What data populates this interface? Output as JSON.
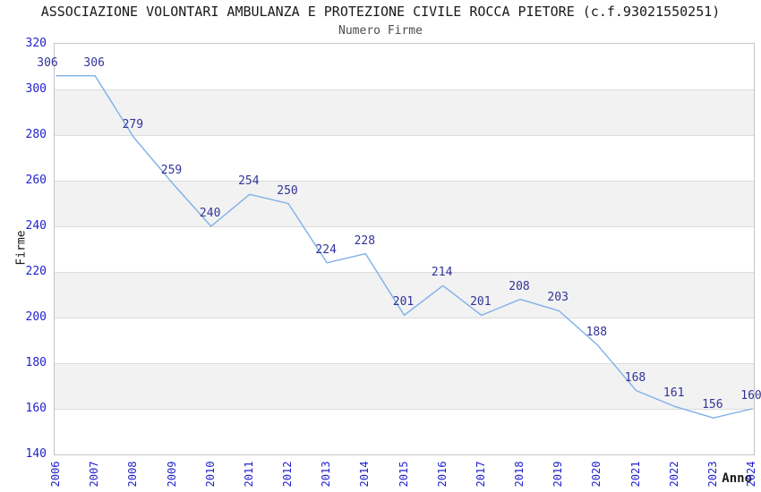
{
  "chart_data": {
    "type": "line",
    "title": "ASSOCIAZIONE VOLONTARI AMBULANZA E PROTEZIONE CIVILE ROCCA PIETORE (c.f.93021550251)",
    "subtitle": "Numero Firme",
    "xlabel": "Anno",
    "ylabel": "Firme",
    "x": [
      2006,
      2007,
      2008,
      2009,
      2010,
      2011,
      2012,
      2013,
      2014,
      2015,
      2016,
      2017,
      2018,
      2019,
      2020,
      2021,
      2022,
      2023,
      2024
    ],
    "values": [
      306,
      306,
      279,
      259,
      240,
      254,
      250,
      224,
      228,
      201,
      214,
      201,
      208,
      203,
      188,
      168,
      161,
      156,
      160
    ],
    "ylim": [
      140,
      320
    ],
    "ytick_step": 20,
    "yticks": [
      140,
      160,
      180,
      200,
      220,
      240,
      260,
      280,
      300,
      320
    ],
    "grid": "alternating horizontal bands",
    "legend_position": "none",
    "point_labels_visible": true,
    "colors": {
      "line": "#7fb0e8",
      "point_labels": "#333399",
      "tick_labels": "#2222cc",
      "title": "#1a1a1a",
      "subtitle": "#4d4d4d",
      "band": "#f2f2f2",
      "gridline": "#dcdcdc",
      "plot_border": "#c4c4c4",
      "background": "#ffffff"
    }
  }
}
